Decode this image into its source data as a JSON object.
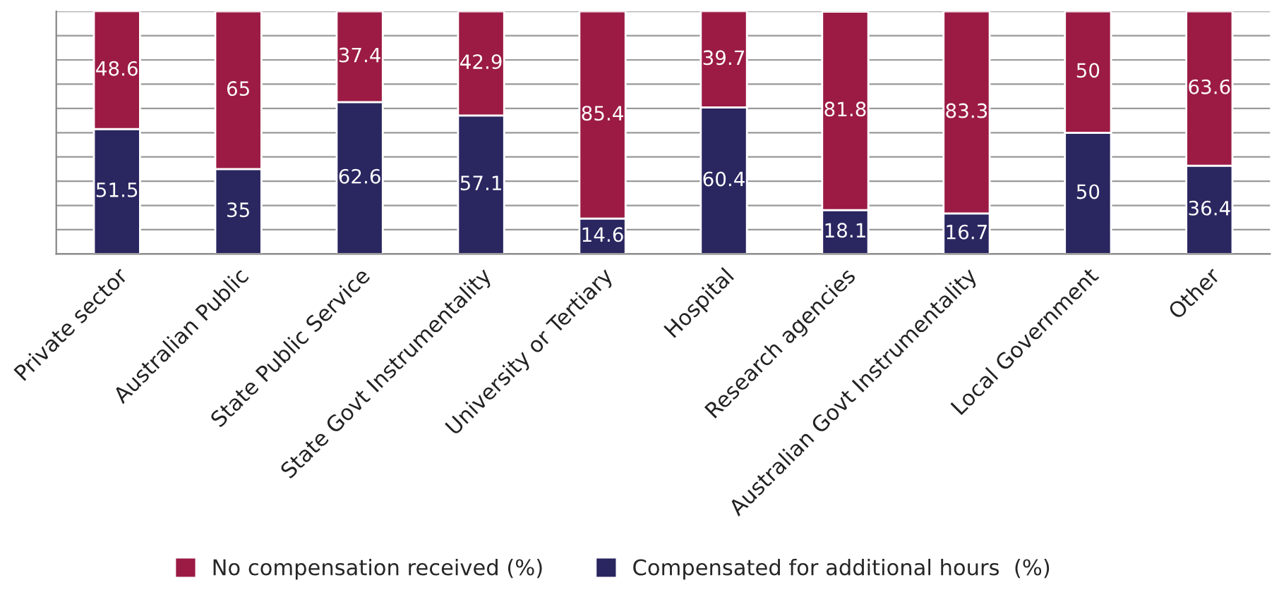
{
  "chart_data": {
    "type": "bar",
    "stacked": true,
    "categories": [
      "Private sector",
      "Australian Public",
      "State Public Service",
      "State Govt Instrumentality",
      "University or Tertiary",
      "Hospital",
      "Research agencies",
      "Australian Govt Instrumentality",
      "Local Government",
      "Other"
    ],
    "series": [
      {
        "name": "Compensated for additional hours  (%)",
        "color": "#2a2660",
        "values": [
          51.5,
          35,
          62.6,
          57.1,
          14.6,
          60.4,
          18.1,
          16.7,
          50,
          36.4
        ]
      },
      {
        "name": "No compensation received (%)",
        "color": "#9b1b45",
        "values": [
          48.6,
          65,
          37.4,
          42.9,
          85.4,
          39.7,
          81.8,
          83.3,
          50,
          63.6
        ]
      }
    ],
    "ylim": [
      0,
      100
    ],
    "yticks": [
      {
        "value": 0,
        "label": null
      },
      {
        "value": 10,
        "label": null
      },
      {
        "value": 20,
        "label": null
      },
      {
        "value": 30,
        "label": null
      },
      {
        "value": 40,
        "label": null
      },
      {
        "value": 50,
        "label": null
      },
      {
        "value": 60,
        "label": null
      },
      {
        "value": 70,
        "label": null
      },
      {
        "value": 80,
        "label": null
      },
      {
        "value": 90,
        "label": null
      },
      {
        "value": 100,
        "label": null
      }
    ],
    "tick_labels": "x",
    "grid": "y",
    "legend": "bottom",
    "data_labels": true
  }
}
